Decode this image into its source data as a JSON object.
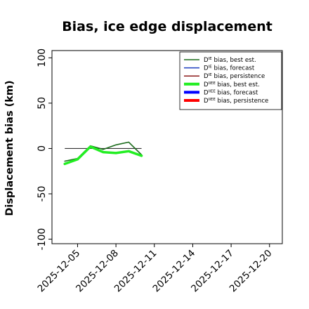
{
  "chart_data": {
    "type": "line",
    "title": "Bias, ice edge displacement",
    "ylabel": "Displacement bias (km)",
    "xlabel": "",
    "ylim": [
      -105,
      108
    ],
    "yticks": [
      -100,
      -50,
      0,
      50,
      100
    ],
    "xlim": [
      "2025-12-03",
      "2025-12-21"
    ],
    "xticks": [
      "2025-12-05",
      "2025-12-08",
      "2025-12-11",
      "2025-12-14",
      "2025-12-17",
      "2025-12-20"
    ],
    "highlight_tick": "2025-12-11",
    "highlight_color": "#228B22",
    "reference_line": {
      "y": 0,
      "x_start": "2025-12-04",
      "x_end": "2025-12-10",
      "color": "#333333"
    },
    "grid": false,
    "legend_position": "top-right",
    "legend": [
      {
        "base": "D",
        "sup": "IE",
        "rest": " bias, best est.",
        "color": "#1a6b1a",
        "width": 1.5
      },
      {
        "base": "D",
        "sup": "IE",
        "rest": " bias, forecast",
        "color": "#1f3fbf",
        "width": 1.5
      },
      {
        "base": "D",
        "sup": "IE",
        "rest": " bias, persistence",
        "color": "#8b1a1a",
        "width": 1.5
      },
      {
        "base": "D",
        "sup": "IIEE",
        "rest": " bias, best est.",
        "color": "#22ee22",
        "width": 4
      },
      {
        "base": "D",
        "sup": "IIEE",
        "rest": " bias, forecast",
        "color": "#0000ff",
        "width": 4
      },
      {
        "base": "D",
        "sup": "IIEE",
        "rest": " bias, persistence",
        "color": "#ff0000",
        "width": 4
      }
    ],
    "series": [
      {
        "color": "#1a6b1a",
        "width": 1.6,
        "points": [
          [
            "2025-12-04",
            -14
          ],
          [
            "2025-12-05",
            -11
          ],
          [
            "2025-12-06",
            3
          ],
          [
            "2025-12-07",
            -1
          ],
          [
            "2025-12-08",
            4
          ],
          [
            "2025-12-09",
            7
          ],
          [
            "2025-12-10",
            -7
          ]
        ]
      },
      {
        "color": "#22ee22",
        "width": 3.5,
        "points": [
          [
            "2025-12-04",
            -17
          ],
          [
            "2025-12-05",
            -12
          ],
          [
            "2025-12-06",
            2
          ],
          [
            "2025-12-07",
            -4
          ],
          [
            "2025-12-08",
            -5
          ],
          [
            "2025-12-09",
            -3
          ],
          [
            "2025-12-10",
            -8
          ]
        ]
      }
    ]
  }
}
